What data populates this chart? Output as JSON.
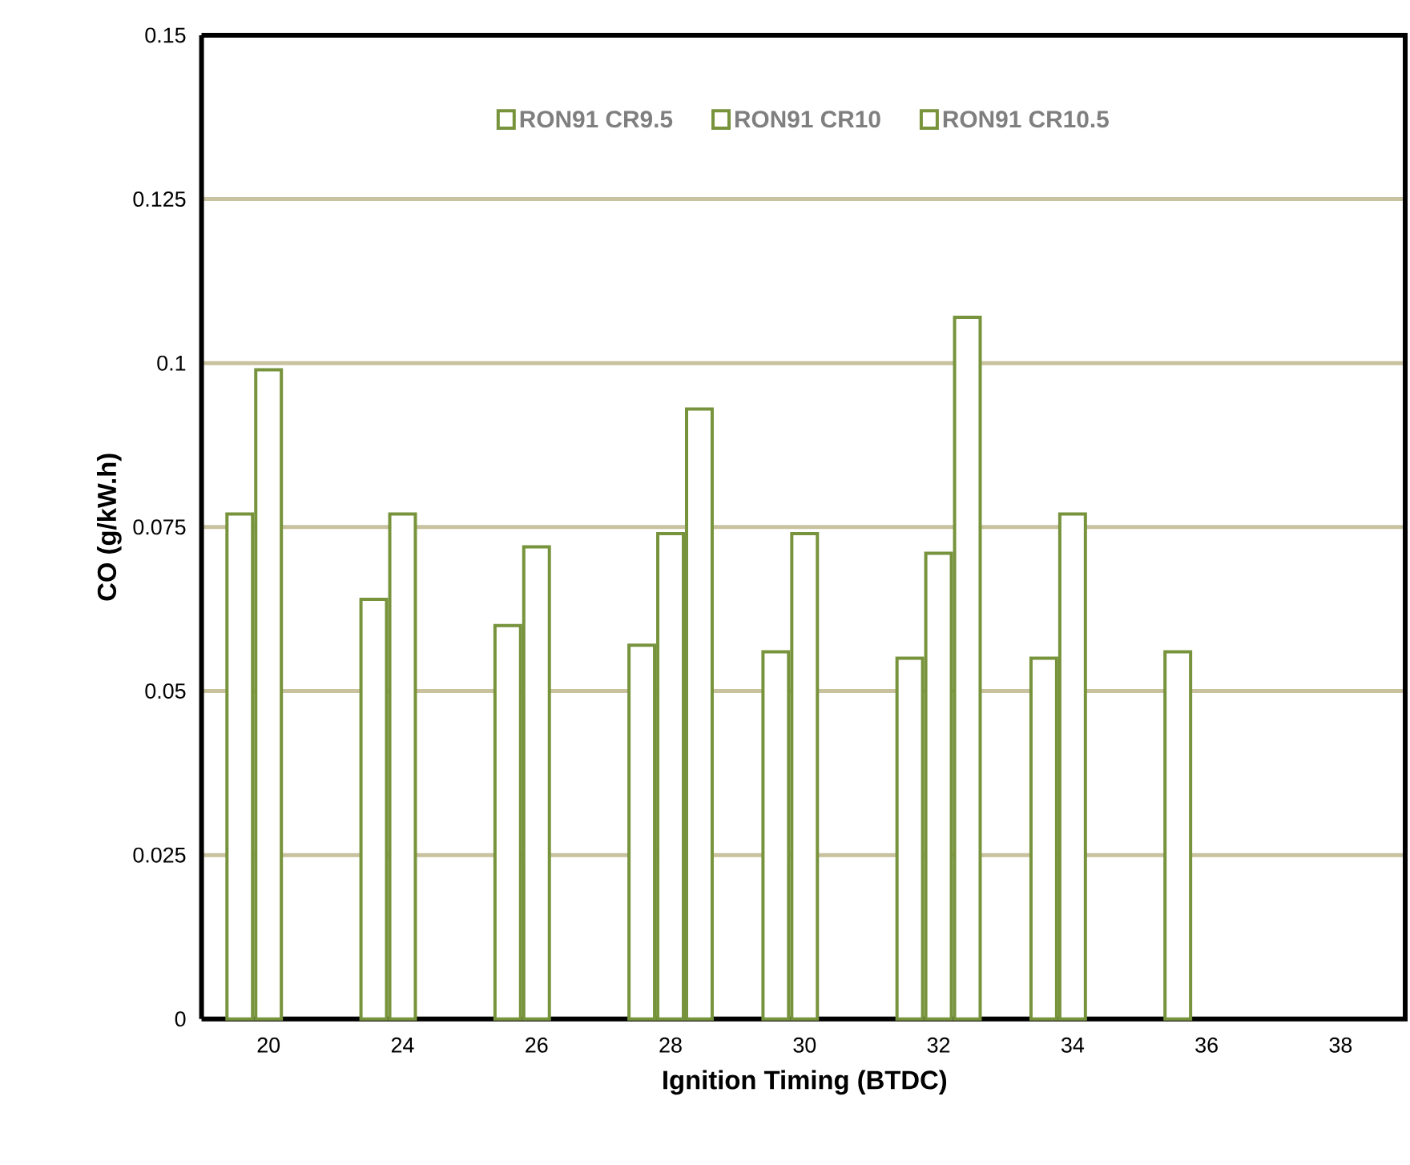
{
  "chart_data": {
    "type": "bar",
    "xlabel": "Ignition Timing (BTDC)",
    "ylabel": "CO (g/kW.h)",
    "categories": [
      "20",
      "24",
      "26",
      "28",
      "30",
      "32",
      "34",
      "36",
      "38"
    ],
    "series": [
      {
        "name": "RON91 CR9.5",
        "color": "#77933c",
        "values": [
          0.077,
          0.064,
          0.06,
          0.057,
          0.056,
          0.055,
          0.055,
          0.056,
          null
        ]
      },
      {
        "name": "RON91 CR10",
        "color": "#77933c",
        "values": [
          0.099,
          0.077,
          0.072,
          0.074,
          0.074,
          0.071,
          0.077,
          null,
          null
        ]
      },
      {
        "name": "RON91 CR10.5",
        "color": "#77933c",
        "values": [
          null,
          null,
          null,
          0.093,
          null,
          0.107,
          null,
          null,
          null
        ]
      }
    ],
    "ylim": [
      0,
      0.15
    ],
    "yticks": [
      0,
      0.025,
      0.05,
      0.075,
      0.1,
      0.125,
      0.15
    ],
    "grid": "y",
    "legend": "top"
  }
}
